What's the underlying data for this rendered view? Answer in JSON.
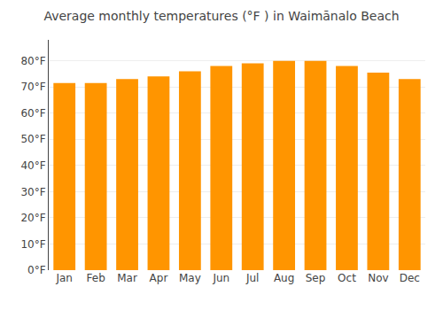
{
  "chart_data": {
    "type": "bar",
    "title": "Average monthly temperatures (°F ) in Waimānalo Beach",
    "categories": [
      "Jan",
      "Feb",
      "Mar",
      "Apr",
      "May",
      "Jun",
      "Jul",
      "Aug",
      "Sep",
      "Oct",
      "Nov",
      "Dec"
    ],
    "values": [
      71.5,
      71.5,
      73,
      74,
      76,
      78,
      79,
      80,
      80,
      78,
      75.5,
      73
    ],
    "color": "#FF9500",
    "ylim": [
      0,
      88
    ],
    "yticks": [
      {
        "value": 0,
        "label": "0°F"
      },
      {
        "value": 10,
        "label": "10°F"
      },
      {
        "value": 20,
        "label": "20°F"
      },
      {
        "value": 30,
        "label": "30°F"
      },
      {
        "value": 40,
        "label": "40°F"
      },
      {
        "value": 50,
        "label": "50°F"
      },
      {
        "value": 60,
        "label": "60°F"
      },
      {
        "value": 70,
        "label": "70°F"
      },
      {
        "value": 80,
        "label": "80°F"
      }
    ],
    "grid": true
  }
}
